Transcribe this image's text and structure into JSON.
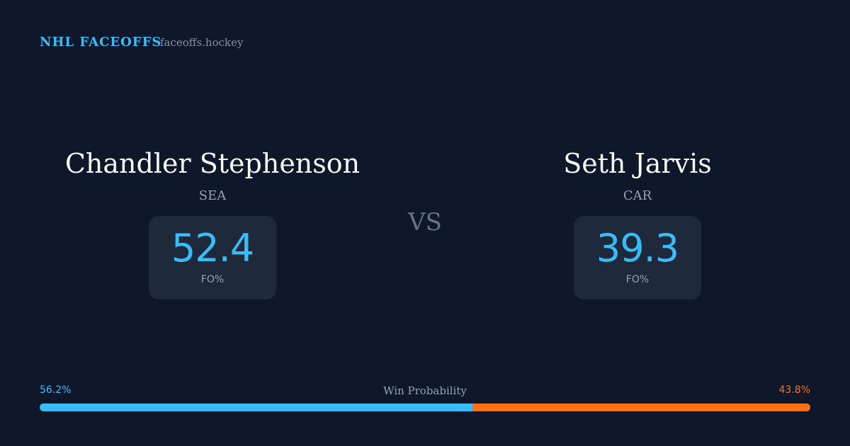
{
  "header": {
    "brand": "NHL FACEOFFS",
    "site": "faceoffs.hockey"
  },
  "players": [
    {
      "name": "Chandler Stephenson",
      "team": "SEA",
      "fo_pct": 52.4,
      "stat_label": "FO%"
    },
    {
      "name": "Seth Jarvis",
      "team": "CAR",
      "fo_pct": 39.3,
      "stat_label": "FO%"
    }
  ],
  "versus": "VS",
  "win_probability": {
    "title": "Win Probability",
    "home": {
      "value": 56.2,
      "label": "56.2%",
      "color": "#38bdf8"
    },
    "away": {
      "value": 43.8,
      "label": "43.8%",
      "color": "#f97316"
    }
  }
}
